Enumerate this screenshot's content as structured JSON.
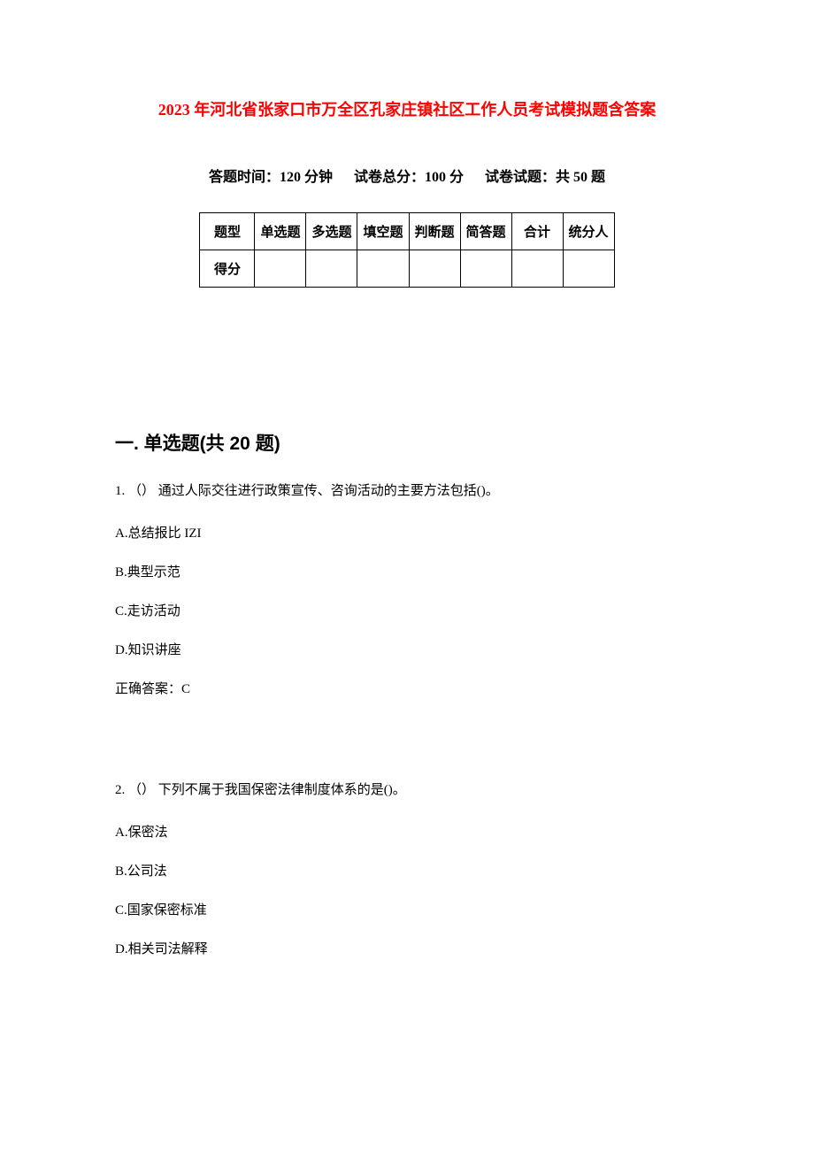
{
  "title": {
    "text": "2023 年河北省张家口市万全区孔家庄镇社区工作人员考试模拟题含答案",
    "color": "#ff0000",
    "font_family": "SimSun",
    "font_size": 18,
    "font_weight": "bold"
  },
  "meta": {
    "time": "答题时间：120 分钟",
    "total": "试卷总分：100 分",
    "count": "试卷试题：共 50 题",
    "font_size": 16,
    "font_weight": "bold"
  },
  "score_table": {
    "columns": [
      "题型",
      "单选题",
      "多选题",
      "填空题",
      "判断题",
      "简答题",
      "合计",
      "统分人"
    ],
    "rows": [
      [
        "得分",
        "",
        "",
        "",
        "",
        "",
        "",
        ""
      ]
    ],
    "border_color": "#000000",
    "cell_padding": 10,
    "font_size": 15
  },
  "section": {
    "title": "一. 单选题(共 20 题)",
    "font_size": 21
  },
  "questions": [
    {
      "number": "1.",
      "marker": "（）",
      "stem": "通过人际交往进行政策宣传、咨询活动的主要方法包括()。",
      "options": [
        {
          "label": "A.",
          "text": "总结报比  IZI"
        },
        {
          "label": "B.",
          "text": "典型示范"
        },
        {
          "label": "C.",
          "text": "走访活动"
        },
        {
          "label": "D.",
          "text": "知识讲座"
        }
      ],
      "answer_label": "正确答案：",
      "answer_value": "C"
    },
    {
      "number": "2.",
      "marker": "（）",
      "stem": "下列不属于我国保密法律制度体系的是()。",
      "options": [
        {
          "label": "A.",
          "text": "保密法"
        },
        {
          "label": "B.",
          "text": "公司法"
        },
        {
          "label": "C.",
          "text": "国家保密标准"
        },
        {
          "label": "D.",
          "text": "相关司法解释"
        }
      ],
      "answer_label": "",
      "answer_value": ""
    }
  ],
  "colors": {
    "title": "#ff0000",
    "body_text": "#000000",
    "background": "#ffffff",
    "table_border": "#000000"
  }
}
